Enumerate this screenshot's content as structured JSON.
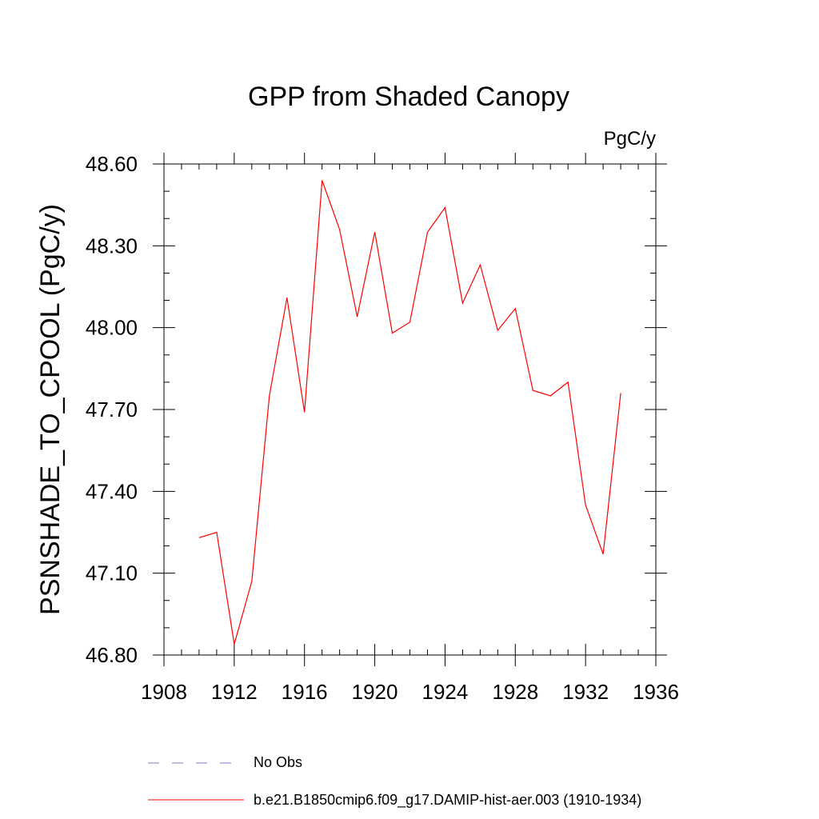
{
  "chart_data": {
    "type": "line",
    "title": "GPP from Shaded Canopy",
    "units_label": "PgC/y",
    "ylabel": "PSNSHADE_TO_CPOOL  (PgC/y)",
    "xlabel": "",
    "xlim": [
      1908,
      1936
    ],
    "ylim": [
      46.8,
      48.6
    ],
    "x_ticks": [
      1908,
      1912,
      1916,
      1920,
      1924,
      1928,
      1932,
      1936
    ],
    "x_tick_labels": [
      "1908",
      "1912",
      "1916",
      "1920",
      "1924",
      "1928",
      "1932",
      "1936"
    ],
    "y_ticks": [
      46.8,
      47.1,
      47.4,
      47.7,
      48.0,
      48.3,
      48.6
    ],
    "y_tick_labels": [
      "46.80",
      "47.10",
      "47.40",
      "47.70",
      "48.00",
      "48.30",
      "48.60"
    ],
    "grid": false,
    "legend_position": "bottom",
    "x": [
      1910,
      1911,
      1912,
      1913,
      1914,
      1915,
      1916,
      1917,
      1918,
      1919,
      1920,
      1921,
      1922,
      1923,
      1924,
      1925,
      1926,
      1927,
      1928,
      1929,
      1930,
      1931,
      1932,
      1933,
      1934
    ],
    "series": [
      {
        "name": "b.e21.B1850cmip6.f09_g17.DAMIP-hist-aer.003 (1910-1934)",
        "color": "#ff0000",
        "style": "solid",
        "values": [
          47.23,
          47.25,
          46.84,
          47.07,
          47.75,
          48.11,
          47.69,
          48.54,
          48.36,
          48.04,
          48.35,
          47.98,
          48.02,
          48.35,
          48.44,
          48.09,
          48.23,
          47.99,
          48.07,
          47.77,
          47.75,
          47.8,
          47.35,
          47.17,
          47.76
        ]
      }
    ],
    "legend": [
      {
        "label": "No Obs",
        "color": "#7b7bd6",
        "style": "dashed"
      },
      {
        "label": "b.e21.B1850cmip6.f09_g17.DAMIP-hist-aer.003 (1910-1934)",
        "color": "#ff0000",
        "style": "solid"
      }
    ]
  }
}
